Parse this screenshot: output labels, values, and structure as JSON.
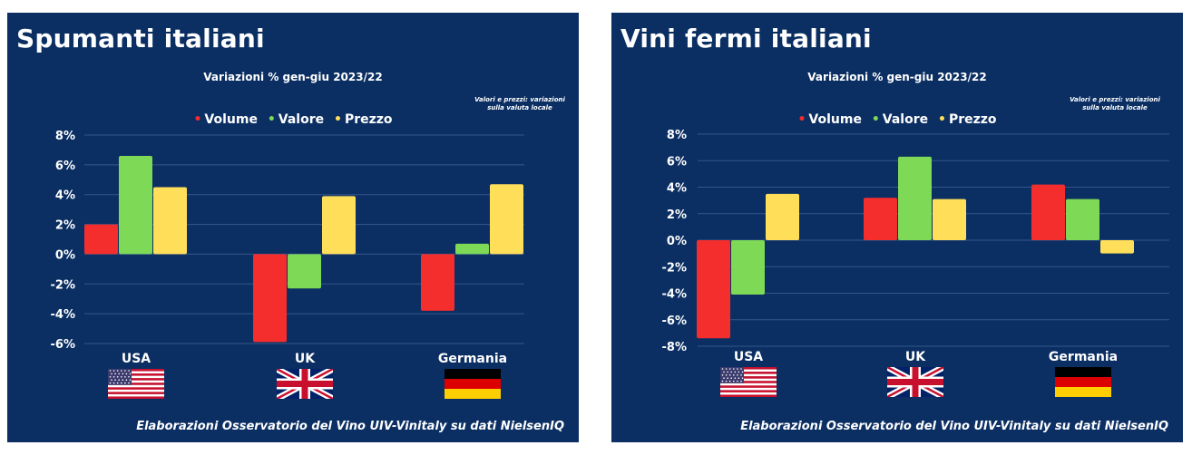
{
  "legend_colors": {
    "Volume": "#f42d2d",
    "Valore": "#7ed957",
    "Prezzo": "#ffde59"
  },
  "panels": [
    {
      "title": "Spumanti italiani",
      "subtitle": "Variazioni % gen-giu 2023/22",
      "note_line1": "Valori e prezzi: variazioni",
      "note_line2": "sulla valuta locale",
      "legend": [
        "Volume",
        "Valore",
        "Prezzo"
      ],
      "footer": "Elaborazioni Osservatorio del Vino UIV-Vinitaly su dati NielsenIQ",
      "flags": [
        "us-flag",
        "uk-flag",
        "de-flag"
      ]
    },
    {
      "title": "Vini fermi italiani",
      "subtitle": "Variazioni % gen-giu 2023/22",
      "note_line1": "Valori e prezzi: variazioni",
      "note_line2": "sulla valuta locale",
      "legend": [
        "Volume",
        "Valore",
        "Prezzo"
      ],
      "footer": "Elaborazioni Osservatorio del Vino UIV-Vinitaly su dati NielsenIQ",
      "flags": [
        "us-flag",
        "uk-flag",
        "de-flag"
      ]
    }
  ],
  "chart_data": [
    {
      "type": "bar",
      "title": "Spumanti italiani",
      "subtitle": "Variazioni % gen-giu 2023/22",
      "categories": [
        "USA",
        "UK",
        "Germania"
      ],
      "series": [
        {
          "name": "Volume",
          "values": [
            2.0,
            -5.9,
            -3.8
          ]
        },
        {
          "name": "Valore",
          "values": [
            6.6,
            -2.3,
            0.7
          ]
        },
        {
          "name": "Prezzo",
          "values": [
            4.5,
            3.9,
            4.7
          ]
        }
      ],
      "ylim": [
        -6,
        8
      ],
      "yticks": [
        "8%",
        "6%",
        "4%",
        "2%",
        "0%",
        "-2%",
        "-4%",
        "-6%"
      ],
      "grid": true,
      "legend_position": "top"
    },
    {
      "type": "bar",
      "title": "Vini fermi italiani",
      "subtitle": "Variazioni % gen-giu 2023/22",
      "categories": [
        "USA",
        "UK",
        "Germania"
      ],
      "series": [
        {
          "name": "Volume",
          "values": [
            -7.4,
            3.2,
            4.2
          ]
        },
        {
          "name": "Valore",
          "values": [
            -4.1,
            6.3,
            3.1
          ]
        },
        {
          "name": "Prezzo",
          "values": [
            3.5,
            3.1,
            -1.0
          ]
        }
      ],
      "ylim": [
        -8,
        8
      ],
      "yticks": [
        "8%",
        "6%",
        "4%",
        "2%",
        "0%",
        "-2%",
        "-4%",
        "-6%",
        "-8%"
      ],
      "grid": true,
      "legend_position": "top"
    }
  ]
}
